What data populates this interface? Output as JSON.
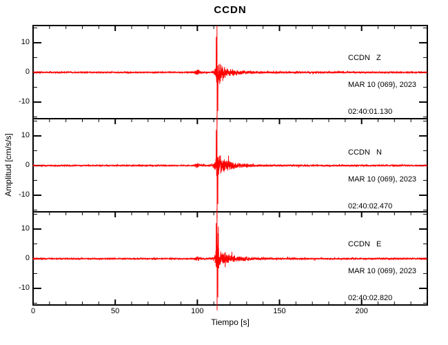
{
  "title": "CCDN",
  "xlabel": "Tiempo [s]",
  "ylabel": "Amplitud [cm/s/s]",
  "colors": {
    "trace": "#ff0000",
    "axis": "#000000",
    "background": "#ffffff"
  },
  "chart_data": {
    "type": "line",
    "subtype": "seismogram-3panel",
    "title": "CCDN",
    "xlabel": "Tiempo [s]",
    "ylabel": "Amplitud [cm/s/s]",
    "xlim": [
      0,
      240
    ],
    "ylim": [
      -15.6,
      15.8
    ],
    "x_ticks_major": [
      0,
      50,
      100,
      150,
      200
    ],
    "x_minor_step": 10,
    "y_ticks_major": [
      -10,
      0,
      10
    ],
    "y_ticks_minor": [
      -15,
      -5,
      5,
      15
    ],
    "grid": false,
    "legend_position": "none",
    "panels": [
      {
        "station": "CCDN",
        "channel": "Z",
        "label": "CCDN   Z",
        "date": "MAR 10 (069), 2023",
        "time": "02:40:01.130",
        "seed": 7,
        "spike_up": 15.8,
        "spike_down": -17.6
      },
      {
        "station": "CCDN",
        "channel": "N",
        "label": "CCDN   N",
        "date": "MAR 10 (069), 2023",
        "time": "02:40:02.470",
        "seed": 13,
        "spike_up": 16.8,
        "spike_down": -17.8
      },
      {
        "station": "CCDN",
        "channel": "E",
        "label": "CCDN   E",
        "date": "MAR 10 (069), 2023",
        "time": "02:40:02.820",
        "seed": 29,
        "spike_up": 16.8,
        "spike_down": -17.4
      }
    ],
    "event": {
      "spike_time_s": 112,
      "secondary_spikes": [
        [
          111.5,
          12.0
        ],
        [
          112.5,
          -13.0
        ]
      ],
      "envelope": [
        [
          0,
          0.22
        ],
        [
          96,
          0.22
        ],
        [
          98,
          0.4
        ],
        [
          99.5,
          0.95
        ],
        [
          100.5,
          1.1
        ],
        [
          101.5,
          0.6
        ],
        [
          103,
          0.35
        ],
        [
          108,
          0.3
        ],
        [
          110,
          0.9
        ],
        [
          111,
          2.2
        ],
        [
          111.5,
          4.5
        ],
        [
          112,
          5.5
        ],
        [
          113,
          5.0
        ],
        [
          114,
          3.8
        ],
        [
          116,
          2.6
        ],
        [
          119,
          1.8
        ],
        [
          123,
          1.2
        ],
        [
          129,
          0.8
        ],
        [
          136,
          0.5
        ],
        [
          147,
          0.32
        ],
        [
          240,
          0.26
        ]
      ]
    }
  }
}
